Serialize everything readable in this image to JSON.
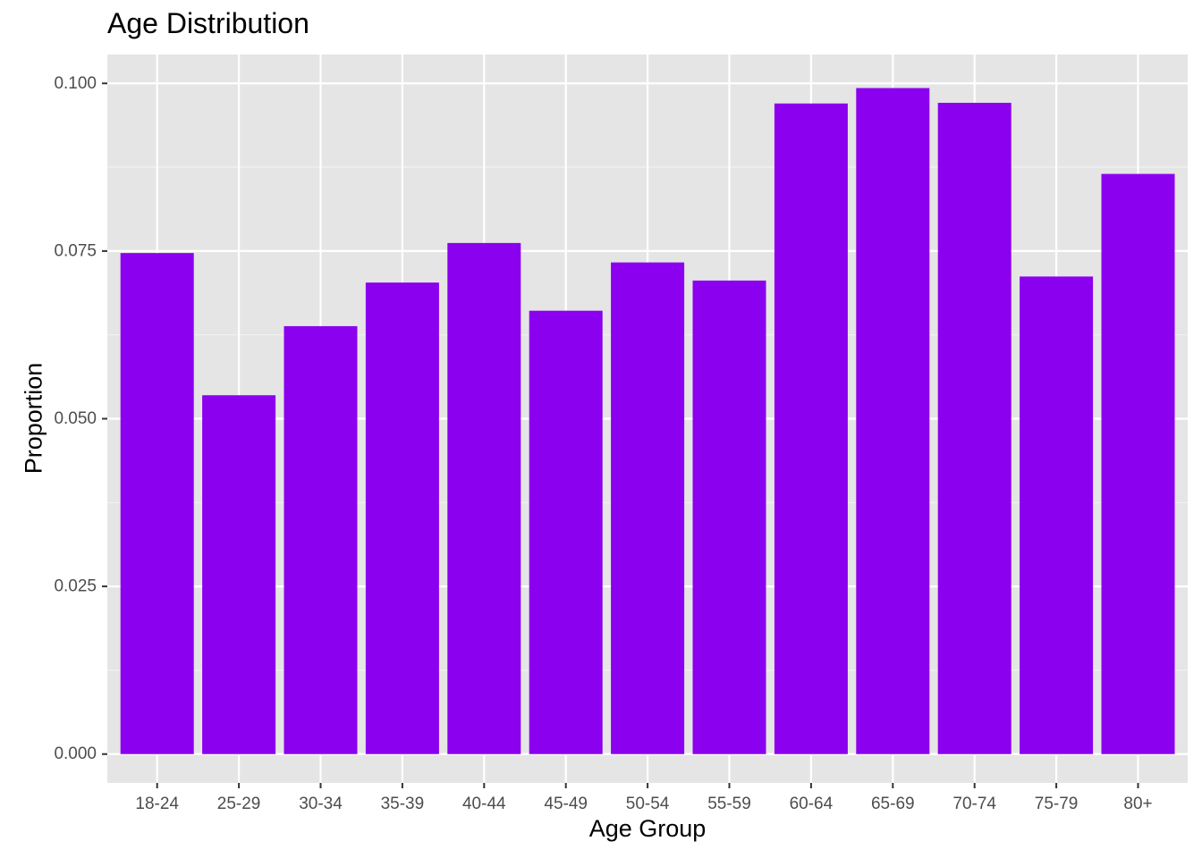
{
  "chart_data": {
    "type": "bar",
    "title": "Age Distribution",
    "xlabel": "Age Group",
    "ylabel": "Proportion",
    "categories": [
      "18-24",
      "25-29",
      "30-34",
      "35-39",
      "40-44",
      "45-49",
      "50-54",
      "55-59",
      "60-64",
      "65-69",
      "70-74",
      "75-79",
      "80+"
    ],
    "values": [
      0.0747,
      0.0535,
      0.0638,
      0.0703,
      0.0762,
      0.0661,
      0.0733,
      0.0706,
      0.097,
      0.0993,
      0.0971,
      0.0712,
      0.0865
    ],
    "ylim": [
      -0.0043,
      0.1043
    ],
    "y_ticks": [
      "0.000",
      "0.025",
      "0.050",
      "0.075",
      "0.100"
    ],
    "y_tick_values": [
      0,
      0.025,
      0.05,
      0.075,
      0.1
    ],
    "grid": true,
    "legend": "none"
  },
  "colors": {
    "bar": "#8B00EE",
    "panel": "#E5E5E5",
    "grid_major": "#FFFFFF",
    "grid_minor": "#F2F2F2",
    "tick_text": "#4D4D4D",
    "tick_mark": "#333333"
  }
}
